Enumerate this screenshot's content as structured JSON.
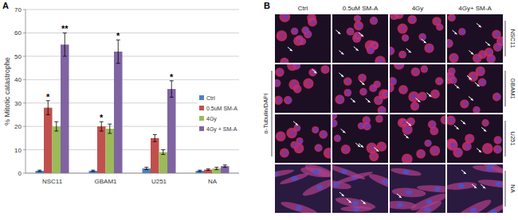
{
  "chart_data": {
    "type": "bar",
    "panel_label": "A",
    "y_label": "% Mitotic catastrophe",
    "categories": [
      "NSC11",
      "GBAM1",
      "U251",
      "NA"
    ],
    "series": [
      {
        "name": "Ctrl",
        "color": "#4f81bd",
        "values": [
          1,
          1,
          2,
          1
        ],
        "errors": [
          0.3,
          0.3,
          0.5,
          0.3
        ]
      },
      {
        "name": "0.5uM SM-A",
        "color": "#c0504d",
        "values": [
          28,
          20,
          15,
          1.5
        ],
        "errors": [
          3,
          2,
          1.5,
          0.3
        ]
      },
      {
        "name": "4Gy",
        "color": "#9bbb59",
        "values": [
          20,
          19,
          9,
          2
        ],
        "errors": [
          2,
          2,
          1,
          0.5
        ]
      },
      {
        "name": "4Gy + SM-A",
        "color": "#8064a2",
        "values": [
          55,
          52,
          36,
          3
        ],
        "errors": [
          5,
          5,
          3.5,
          0.5
        ]
      }
    ],
    "annotations": [
      {
        "text": "*",
        "series": 1,
        "category": 0
      },
      {
        "text": "**",
        "series": 3,
        "category": 0
      },
      {
        "text": "*",
        "series": 1,
        "category": 1
      },
      {
        "text": "*",
        "series": 3,
        "category": 1
      },
      {
        "text": "*",
        "series": 3,
        "category": 2
      }
    ],
    "ylim": [
      0,
      70
    ],
    "yticks": [
      0,
      10,
      20,
      30,
      40,
      50,
      60,
      70
    ],
    "grid": true,
    "legend": "right"
  },
  "panel_b": {
    "label": "B",
    "stain_label": "α-Tubulin/DAPI",
    "columns": [
      "Ctrl",
      "0.5uM SM-A",
      "4Gy",
      "4Gy+ SM-A"
    ],
    "rows": [
      "NSC11",
      "GBAM1",
      "U251",
      "NA"
    ]
  }
}
